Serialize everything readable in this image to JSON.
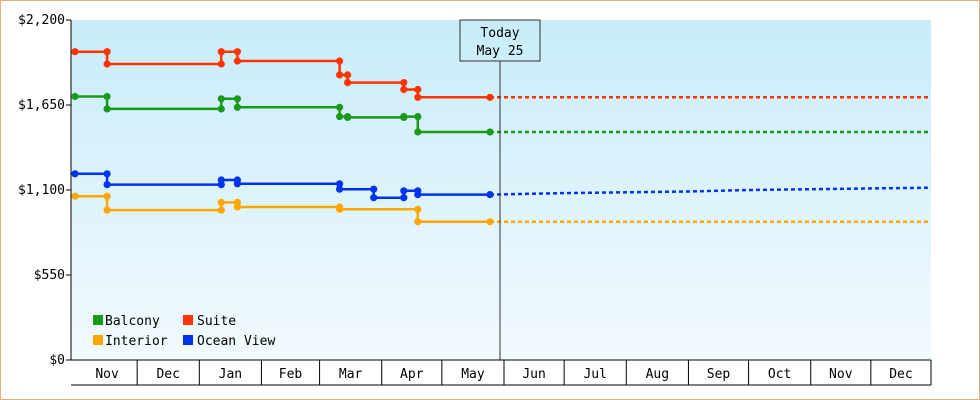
{
  "chart_data": {
    "type": "line",
    "today_label": [
      "Today",
      "May 25"
    ],
    "y_ticks": [
      "$0",
      "$550",
      "$1,100",
      "$1,650",
      "$2,200"
    ],
    "ylim": [
      0,
      2200
    ],
    "month_labels": [
      "Nov",
      "Dec",
      "Jan",
      "Feb",
      "Mar",
      "Apr",
      "May",
      "Jun",
      "Jul",
      "Aug",
      "Sep",
      "Oct",
      "Nov",
      "Dec"
    ],
    "legend": [
      "Balcony",
      "Suite",
      "Interior",
      "Ocean View"
    ],
    "colors": {
      "Balcony": "#1a9a1a",
      "Suite": "#ff3300",
      "Interior": "#ffa600",
      "Ocean View": "#0033ee",
      "plot_top": "#c8ecf9",
      "plot_bottom": "#f2fafe"
    },
    "series": [
      {
        "name": "Suite",
        "history": [
          [
            "2023-10-31",
            1995
          ],
          [
            "2023-11-16",
            1995
          ],
          [
            "2023-11-16",
            1915
          ],
          [
            "2024-01-12",
            1915
          ],
          [
            "2024-01-12",
            1995
          ],
          [
            "2024-01-20",
            1995
          ],
          [
            "2024-01-20",
            1935
          ],
          [
            "2024-03-11",
            1935
          ],
          [
            "2024-03-11",
            1845
          ],
          [
            "2024-03-15",
            1845
          ],
          [
            "2024-03-15",
            1795
          ],
          [
            "2024-04-12",
            1795
          ],
          [
            "2024-04-12",
            1750
          ],
          [
            "2024-04-19",
            1750
          ],
          [
            "2024-04-19",
            1700
          ],
          [
            "2024-05-25",
            1700
          ]
        ],
        "forecast": [
          [
            "2024-05-25",
            1700
          ],
          [
            "2024-12-31",
            1700
          ]
        ]
      },
      {
        "name": "Balcony",
        "history": [
          [
            "2023-10-31",
            1705
          ],
          [
            "2023-11-16",
            1705
          ],
          [
            "2023-11-16",
            1625
          ],
          [
            "2024-01-12",
            1625
          ],
          [
            "2024-01-12",
            1690
          ],
          [
            "2024-01-20",
            1690
          ],
          [
            "2024-01-20",
            1635
          ],
          [
            "2024-03-11",
            1635
          ],
          [
            "2024-03-11",
            1575
          ],
          [
            "2024-03-15",
            1575
          ],
          [
            "2024-03-15",
            1570
          ],
          [
            "2024-04-12",
            1570
          ],
          [
            "2024-04-12",
            1575
          ],
          [
            "2024-04-19",
            1575
          ],
          [
            "2024-04-19",
            1475
          ],
          [
            "2024-05-25",
            1475
          ]
        ],
        "forecast": [
          [
            "2024-05-25",
            1475
          ],
          [
            "2024-12-31",
            1475
          ]
        ]
      },
      {
        "name": "Ocean View",
        "history": [
          [
            "2023-10-31",
            1205
          ],
          [
            "2023-11-16",
            1205
          ],
          [
            "2023-11-16",
            1135
          ],
          [
            "2024-01-12",
            1135
          ],
          [
            "2024-01-12",
            1165
          ],
          [
            "2024-01-20",
            1165
          ],
          [
            "2024-01-20",
            1140
          ],
          [
            "2024-03-11",
            1140
          ],
          [
            "2024-03-11",
            1105
          ],
          [
            "2024-03-28",
            1105
          ],
          [
            "2024-03-28",
            1050
          ],
          [
            "2024-04-12",
            1050
          ],
          [
            "2024-04-12",
            1095
          ],
          [
            "2024-04-19",
            1095
          ],
          [
            "2024-04-19",
            1070
          ],
          [
            "2024-05-25",
            1070
          ]
        ],
        "forecast": [
          [
            "2024-05-25",
            1070
          ],
          [
            "2024-07-01",
            1080
          ],
          [
            "2024-08-01",
            1085
          ],
          [
            "2024-09-01",
            1090
          ],
          [
            "2024-10-01",
            1100
          ],
          [
            "2024-11-01",
            1105
          ],
          [
            "2024-12-31",
            1115
          ]
        ]
      },
      {
        "name": "Interior",
        "history": [
          [
            "2023-10-31",
            1060
          ],
          [
            "2023-11-16",
            1060
          ],
          [
            "2023-11-16",
            970
          ],
          [
            "2024-01-12",
            970
          ],
          [
            "2024-01-12",
            1020
          ],
          [
            "2024-01-20",
            1020
          ],
          [
            "2024-01-20",
            990
          ],
          [
            "2024-03-11",
            990
          ],
          [
            "2024-03-11",
            975
          ],
          [
            "2024-04-19",
            975
          ],
          [
            "2024-04-19",
            895
          ],
          [
            "2024-05-25",
            895
          ]
        ],
        "forecast": [
          [
            "2024-05-25",
            895
          ],
          [
            "2024-12-31",
            895
          ]
        ]
      }
    ]
  }
}
